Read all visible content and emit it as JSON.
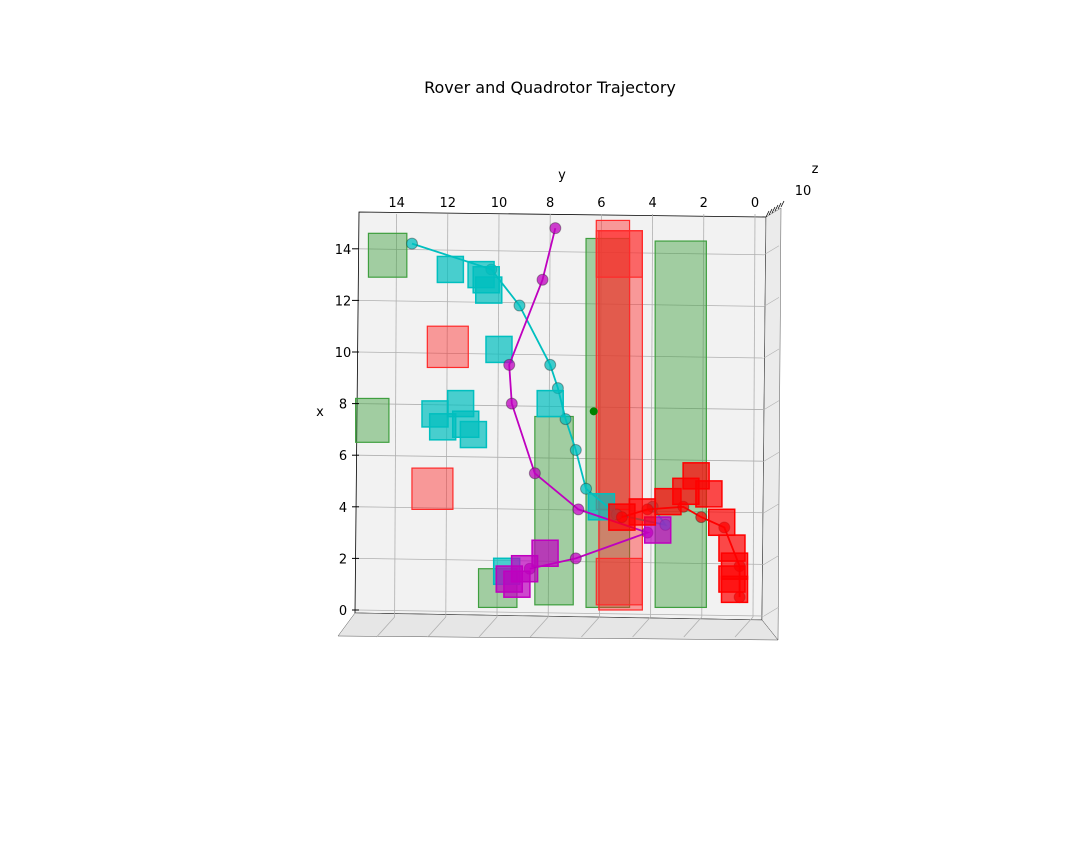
{
  "chart_data": {
    "type": "scatter",
    "title": "Rover and Quadrotor Trajectory",
    "projection": "3d",
    "xlabel": "x",
    "ylabel": "y",
    "zlabel": "z",
    "grid": true,
    "x_ticks": [
      "0",
      "2",
      "4",
      "6",
      "8",
      "10",
      "12",
      "14"
    ],
    "y_ticks": [
      "14",
      "12",
      "10",
      "8",
      "6",
      "4",
      "2",
      "0"
    ],
    "z_ticks": [
      "10"
    ],
    "xlim": [
      0,
      15
    ],
    "ylim": [
      0,
      15
    ],
    "colors": {
      "pane": "#f2f2f2",
      "grid": "#b0b0b0",
      "green_obstacle": "#3f9f3f",
      "red_obstacle": "#ff2a2a",
      "cyan": "#00bfbf",
      "magenta": "#bf00bf",
      "red_path": "#ff0000",
      "dark_marker": "#2b2b2b"
    },
    "obstacles": [
      {
        "color": "green",
        "x": [
          12.9,
          14.6
        ],
        "y": [
          13.6,
          15.1
        ]
      },
      {
        "color": "green",
        "x": [
          0.2,
          7.5
        ],
        "y": [
          7.1,
          8.6
        ]
      },
      {
        "color": "green",
        "x": [
          0.1,
          1.6
        ],
        "y": [
          9.3,
          10.8
        ]
      },
      {
        "color": "green",
        "x": [
          0.1,
          14.4
        ],
        "y": [
          4.9,
          6.6
        ]
      },
      {
        "color": "green",
        "x": [
          0.1,
          14.3
        ],
        "y": [
          1.9,
          3.9
        ]
      },
      {
        "color": "green",
        "x": [
          6.5,
          8.2
        ],
        "y": [
          14.3,
          15.6
        ]
      },
      {
        "color": "red",
        "x": [
          9.4,
          11.0
        ],
        "y": [
          11.2,
          12.8
        ]
      },
      {
        "color": "red",
        "x": [
          3.9,
          5.5
        ],
        "y": [
          11.8,
          13.4
        ]
      },
      {
        "color": "red",
        "x": [
          12.9,
          14.7
        ],
        "y": [
          4.4,
          6.2
        ]
      },
      {
        "color": "red",
        "x": [
          0.2,
          2.0
        ],
        "y": [
          4.4,
          6.2
        ]
      },
      {
        "color": "red",
        "x": [
          0.0,
          14.7
        ],
        "y": [
          4.4,
          6.1
        ]
      },
      {
        "color": "red",
        "x": [
          3.9,
          15.1
        ],
        "y": [
          4.9,
          6.2
        ]
      }
    ],
    "goal": {
      "x": 7.7,
      "y": 6.3
    },
    "series": [
      {
        "color": "cyan",
        "marker_boxes": [
          [
            13.2,
            11.9
          ],
          [
            13.0,
            10.7
          ],
          [
            12.4,
            10.4
          ],
          [
            12.8,
            10.5
          ],
          [
            10.1,
            10.0
          ],
          [
            8.0,
            8.0
          ],
          [
            8.0,
            11.5
          ],
          [
            7.2,
            11.3
          ],
          [
            7.6,
            12.5
          ],
          [
            6.8,
            11.0
          ],
          [
            7.1,
            12.2
          ],
          [
            4.0,
            6.0
          ],
          [
            1.5,
            9.7
          ]
        ],
        "path": [
          [
            14.2,
            13.4
          ],
          [
            13.2,
            10.3
          ],
          [
            11.8,
            9.2
          ],
          [
            9.5,
            8.0
          ],
          [
            8.6,
            7.7
          ],
          [
            7.4,
            7.4
          ],
          [
            6.2,
            7.0
          ],
          [
            4.7,
            6.6
          ],
          [
            3.7,
            5.4
          ],
          [
            3.3,
            3.5
          ],
          [
            4.0,
            4.0
          ]
        ]
      },
      {
        "color": "magenta",
        "marker_boxes": [
          [
            3.1,
            3.8
          ],
          [
            2.2,
            8.2
          ],
          [
            1.6,
            9.0
          ],
          [
            1.2,
            9.6
          ],
          [
            1.0,
            9.3
          ]
        ],
        "path": [
          [
            14.8,
            7.8
          ],
          [
            12.8,
            8.3
          ],
          [
            9.5,
            9.6
          ],
          [
            8.0,
            9.5
          ],
          [
            5.3,
            8.6
          ],
          [
            3.9,
            6.9
          ],
          [
            3.0,
            4.2
          ],
          [
            2.0,
            7.0
          ],
          [
            1.6,
            8.8
          ]
        ]
      },
      {
        "color": "red",
        "marker_boxes": [
          [
            3.6,
            5.2
          ],
          [
            3.8,
            4.4
          ],
          [
            4.2,
            3.4
          ],
          [
            5.2,
            2.3
          ],
          [
            4.6,
            2.7
          ],
          [
            4.5,
            1.8
          ],
          [
            3.4,
            1.3
          ],
          [
            2.4,
            0.9
          ],
          [
            1.7,
            0.8
          ],
          [
            1.2,
            0.9
          ],
          [
            0.8,
            0.8
          ]
        ],
        "path": [
          [
            3.6,
            5.2
          ],
          [
            3.9,
            4.2
          ],
          [
            4.0,
            2.8
          ],
          [
            3.6,
            2.1
          ],
          [
            3.2,
            1.2
          ],
          [
            1.7,
            0.6
          ],
          [
            0.5,
            0.6
          ]
        ]
      }
    ]
  }
}
